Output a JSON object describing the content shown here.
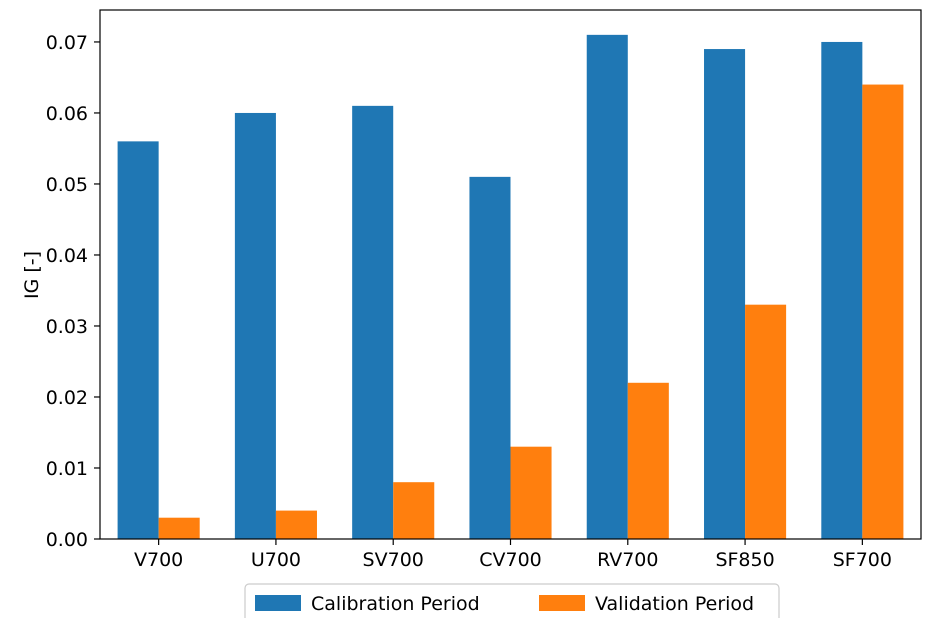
{
  "chart_data": {
    "type": "bar",
    "title": "",
    "xlabel": "",
    "ylabel": "IG [-]",
    "categories": [
      "V700",
      "U700",
      "SV700",
      "CV700",
      "RV700",
      "SF850",
      "SF700"
    ],
    "series": [
      {
        "name": "Calibration Period",
        "color": "#1f77b4",
        "values": [
          0.056,
          0.06,
          0.061,
          0.051,
          0.071,
          0.069,
          0.07
        ]
      },
      {
        "name": "Validation Period",
        "color": "#ff7f0e",
        "values": [
          0.003,
          0.004,
          0.008,
          0.013,
          0.022,
          0.033,
          0.064
        ]
      }
    ],
    "ylim": [
      0,
      0.0745
    ],
    "yticks": [
      "0.00",
      "0.01",
      "0.02",
      "0.03",
      "0.04",
      "0.05",
      "0.06",
      "0.07"
    ],
    "grid": false,
    "legend_position": "bottom-center"
  }
}
